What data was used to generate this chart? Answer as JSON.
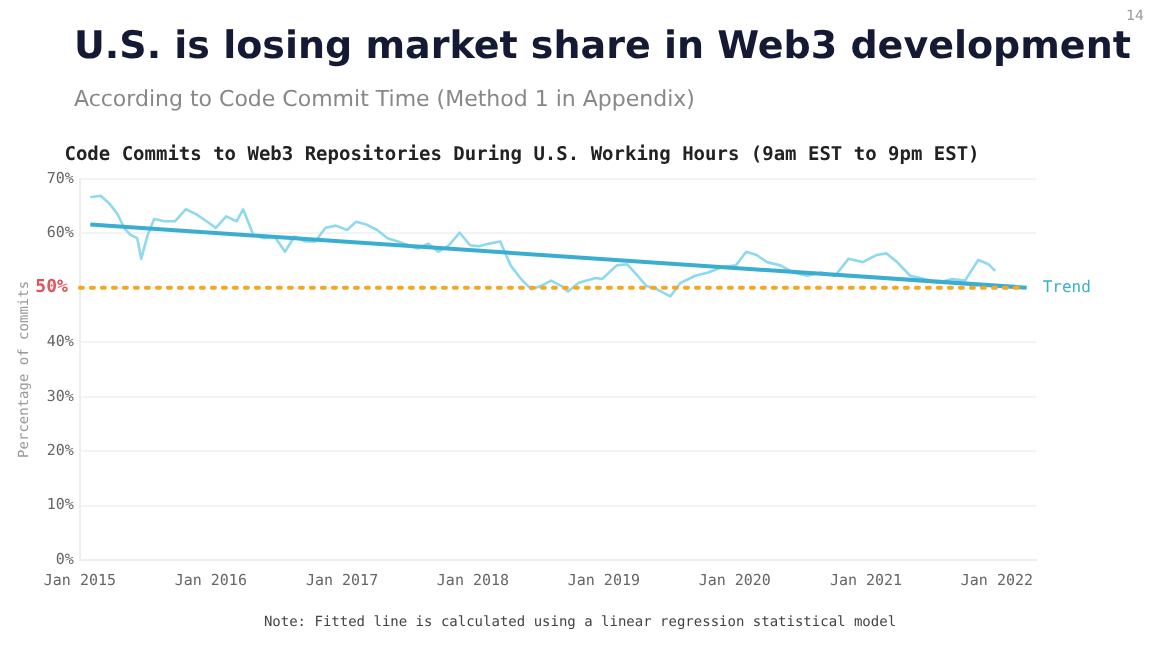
{
  "chart_data": {
    "type": "line",
    "title": "Code Commits to Web3 Repositories During U.S. Working Hours (9am EST to 9pm EST)",
    "subtitle": "According to Code Commit Time (Method 1 in Appendix)",
    "ylabel": "Percentage of commits",
    "annotations": [
      "U.S. is losing market share in Web3 development",
      "Note: Fitted line is calculated using a linear regression statistical model",
      "14"
    ],
    "series": [
      {
        "color": "#8fd9ec",
        "x": [
          "2015-01-30",
          "2015-02-28",
          "2015-03-25",
          "2015-04-16",
          "2015-05-04",
          "2015-05-22",
          "2015-06-10",
          "2015-06-21",
          "2015-07-09",
          "2015-07-27",
          "2015-08-25",
          "2015-09-23",
          "2015-10-23",
          "2015-11-21",
          "2015-12-20",
          "2016-01-15",
          "2016-02-13",
          "2016-03-13",
          "2016-03-31",
          "2016-04-29",
          "2016-05-29",
          "2016-06-27",
          "2016-07-26",
          "2016-08-21",
          "2016-09-19",
          "2016-10-18",
          "2016-11-16",
          "2016-12-15",
          "2017-01-15",
          "2017-02-09",
          "2017-03-10",
          "2017-04-09",
          "2017-05-08",
          "2017-06-06",
          "2017-07-05",
          "2017-07-31",
          "2017-08-29",
          "2017-09-27",
          "2017-10-26",
          "2017-11-25",
          "2017-12-24",
          "2018-01-18",
          "2018-02-16",
          "2018-03-18",
          "2018-04-16",
          "2018-05-15",
          "2018-06-13",
          "2018-07-09",
          "2018-08-07",
          "2018-09-05",
          "2018-09-23",
          "2018-10-23",
          "2018-12-09",
          "2018-12-27",
          "2019-02-06",
          "2019-03-07",
          "2019-04-05",
          "2019-04-30",
          "2019-05-30",
          "2019-07-05",
          "2019-08-03",
          "2019-09-13",
          "2019-10-19",
          "2019-11-28",
          "2020-01-04",
          "2020-02-02",
          "2020-03-02",
          "2020-03-31",
          "2020-05-07",
          "2020-06-12",
          "2020-07-22",
          "2020-08-28",
          "2020-10-07",
          "2020-11-13",
          "2020-12-23",
          "2021-01-30",
          "2021-02-27",
          "2021-03-29",
          "2021-05-04",
          "2021-06-13",
          "2021-07-20",
          "2021-08-29",
          "2021-10-04",
          "2021-11-10",
          "2021-12-09",
          "2021-12-27"
        ],
        "values": [
          66.6,
          66.9,
          65.4,
          63.5,
          61,
          59.7,
          59.1,
          55.3,
          59.7,
          62.6,
          62.2,
          62.2,
          64.4,
          63.5,
          62.2,
          61,
          63.1,
          62.2,
          64.4,
          59.7,
          59.1,
          59.4,
          56.6,
          59.4,
          58.5,
          58.5,
          61,
          61.4,
          60.6,
          62.1,
          61.6,
          60.6,
          59.1,
          58.5,
          57.8,
          57.2,
          58.1,
          56.6,
          57.8,
          60.1,
          57.8,
          57.6,
          58.1,
          58.5,
          54.1,
          51.6,
          49.7,
          50.3,
          51.3,
          50.3,
          49.3,
          50.9,
          51.8,
          51.6,
          54.1,
          54.3,
          52.2,
          50.3,
          49.7,
          48.4,
          50.9,
          52.2,
          52.8,
          53.8,
          54.1,
          56.6,
          56,
          54.7,
          54.1,
          52.8,
          52.2,
          52.8,
          52.2,
          55.3,
          54.7,
          56,
          56.3,
          54.7,
          52.2,
          51.6,
          50.9,
          51.6,
          51.3,
          55.1,
          54.3,
          53.1
        ]
      },
      {
        "name": "Trend",
        "color": "#3aaed0",
        "x": [
          "2015-01-30",
          "2022-03-25"
        ],
        "values": [
          61.6,
          50.0
        ]
      }
    ],
    "xlim": [
      "2015-01-01",
      "2022-04-20"
    ],
    "xticks": [
      {
        "value": "2015-01",
        "label": "Jan 2015"
      },
      {
        "value": "2016-01",
        "label": "Jan 2016"
      },
      {
        "value": "2017-01",
        "label": "Jan 2017"
      },
      {
        "value": "2018-01",
        "label": "Jan 2018"
      },
      {
        "value": "2019-01",
        "label": "Jan 2019"
      },
      {
        "value": "2020-01",
        "label": "Jan 2020"
      },
      {
        "value": "2021-01",
        "label": "Jan 2021"
      },
      {
        "value": "2022-01",
        "label": "Jan 2022"
      }
    ],
    "ylim": [
      0,
      70
    ],
    "yticks": [
      {
        "value": 0,
        "label": "0%"
      },
      {
        "value": 10,
        "label": "10%"
      },
      {
        "value": 20,
        "label": "20%"
      },
      {
        "value": 30,
        "label": "30%"
      },
      {
        "value": 40,
        "label": "40%"
      },
      {
        "value": 60,
        "label": "60%"
      },
      {
        "value": 70,
        "label": "70%"
      }
    ],
    "ref_lines": [
      {
        "axis": "y",
        "value": 50,
        "label": "50%",
        "color": "#f5a623",
        "line_style": "dotted"
      }
    ],
    "grid": "y",
    "legend": false,
    "marker": "none",
    "line_style": "solid"
  }
}
